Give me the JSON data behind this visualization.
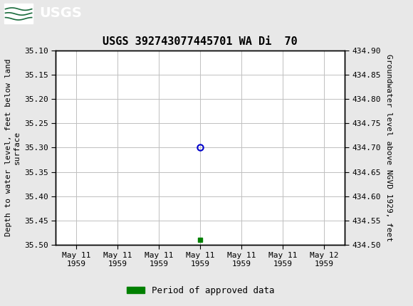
{
  "title": "USGS 392743077445701 WA Di  70",
  "ylabel_left": "Depth to water level, feet below land\nsurface",
  "ylabel_right": "Groundwater level above NGVD 1929, feet",
  "ylim_left": [
    35.1,
    35.5
  ],
  "ylim_right_top": 434.9,
  "ylim_right_bottom": 434.5,
  "yticks_left": [
    35.1,
    35.15,
    35.2,
    35.25,
    35.3,
    35.35,
    35.4,
    35.45,
    35.5
  ],
  "yticks_right": [
    434.9,
    434.85,
    434.8,
    434.75,
    434.7,
    434.65,
    434.6,
    434.55,
    434.5
  ],
  "xtick_labels": [
    "May 11\n1959",
    "May 11\n1959",
    "May 11\n1959",
    "May 11\n1959",
    "May 11\n1959",
    "May 11\n1959",
    "May 12\n1959"
  ],
  "xtick_positions": [
    0,
    1,
    2,
    3,
    4,
    5,
    6
  ],
  "data_x": [
    3
  ],
  "data_y_blue": [
    35.3
  ],
  "data_x_green": [
    3
  ],
  "data_y_green": [
    35.49
  ],
  "header_color": "#1a6b3c",
  "bg_color": "#e8e8e8",
  "plot_bg_color": "#ffffff",
  "grid_color": "#c0c0c0",
  "blue_marker_color": "#0000cc",
  "green_marker_color": "#008000",
  "legend_label": "Period of approved data",
  "title_fontsize": 11,
  "axis_label_fontsize": 8,
  "tick_fontsize": 8
}
